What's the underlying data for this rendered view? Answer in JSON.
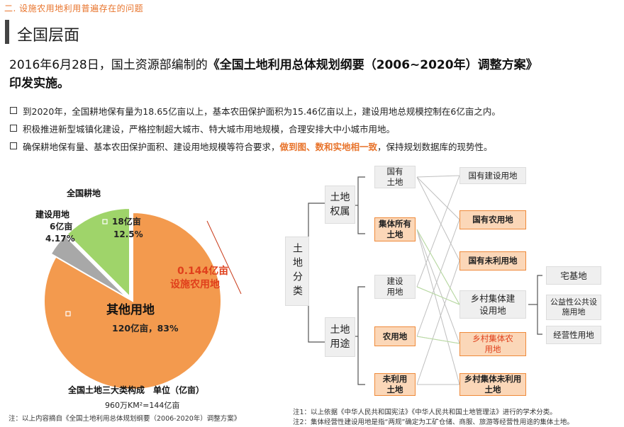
{
  "header": {
    "section_tag": "二. 设施农用地利用普遍存在的问题",
    "page_title": "全国层面"
  },
  "headline": {
    "date_text": "2016年6月28日，国土资源部编制的",
    "doc_title": "《全国土地利用总体规划纲要（2006~2020年）调整方案》",
    "ending": "印发实施。"
  },
  "bullets": [
    {
      "text": "到2020年，全国耕地保有量为18.65亿亩以上，基本农田保护面积为15.46亿亩以上，建设用地总规模控制在6亿亩之内。"
    },
    {
      "text": "积极推进新型城镇化建设，严格控制超大城市、特大城市用地规模，合理安排大中小城市用地。"
    },
    {
      "pre": "确保耕地保有量、基本农田保护面积、建设用地规模等符合要求，",
      "highlight": "做到图、数和实地相一致",
      "post": "，保持规划数据库的现势性。"
    }
  ],
  "colors": {
    "orange": "#f39a4e",
    "green": "#9fd46a",
    "grey": "#a8a8a8",
    "red_text": "#e0401c",
    "accent": "#e8742c"
  },
  "chart_data": {
    "type": "pie",
    "title": "全国土地三大类构成　单位（亿亩）",
    "subtitle": "960万KM²=144亿亩",
    "slices": [
      {
        "name": "其他用地",
        "value": 120,
        "percent_label": "120亿亩，83%",
        "color": "#f39a4e"
      },
      {
        "name": "全国耕地",
        "value": 18,
        "value_label": "18亿亩",
        "percent_label": "12.5%",
        "color": "#9fd46a"
      },
      {
        "name": "建设用地",
        "value": 6,
        "value_label": "6亿亩",
        "percent_label": "4.17%",
        "color": "#a8a8a8"
      }
    ],
    "annotation": {
      "line1": "0.144亿亩",
      "line2": "设施农用地"
    }
  },
  "diagram": {
    "root": "土地分类",
    "mid": [
      {
        "id": "quanshu",
        "label": "土地权属"
      },
      {
        "id": "yongtu",
        "label": "土地用途"
      }
    ],
    "left_nodes": [
      {
        "id": "guoyou",
        "label": "国有土地"
      },
      {
        "id": "jiti",
        "label": "集体所有土地"
      },
      {
        "id": "jianshe",
        "label": "建设用地"
      },
      {
        "id": "nongyong",
        "label": "农用地"
      },
      {
        "id": "weili",
        "label": "未利用土地"
      }
    ],
    "right_nodes": [
      {
        "id": "gyjs",
        "label": "国有建设用地"
      },
      {
        "id": "gyny",
        "label": "国有农用地"
      },
      {
        "id": "gywl",
        "label": "国有未利用地"
      },
      {
        "id": "xcjs",
        "label": "乡村集体建设用地"
      },
      {
        "id": "xcny",
        "label": "乡村集体农用地"
      },
      {
        "id": "xcwl",
        "label": "乡村集体未利用土地"
      }
    ],
    "far_nodes": [
      {
        "id": "zhai",
        "label": "宅基地"
      },
      {
        "id": "gongyi",
        "label": "公益性公共设施用地"
      },
      {
        "id": "jingying",
        "label": "经营性用地"
      }
    ]
  },
  "notes": {
    "left": "注：以上内容摘自《全国土地利用总体规划纲要（2006-2020年）调整方案》",
    "right1": "注1：以上依据《中华人民共和国宪法》《中华人民共和国土地管理法》进行的学术分类。",
    "right2": "注2：集体经营性建设用地是指“两规”确定为工矿仓储、商服、旅游等经营性用途的集体土地。"
  }
}
